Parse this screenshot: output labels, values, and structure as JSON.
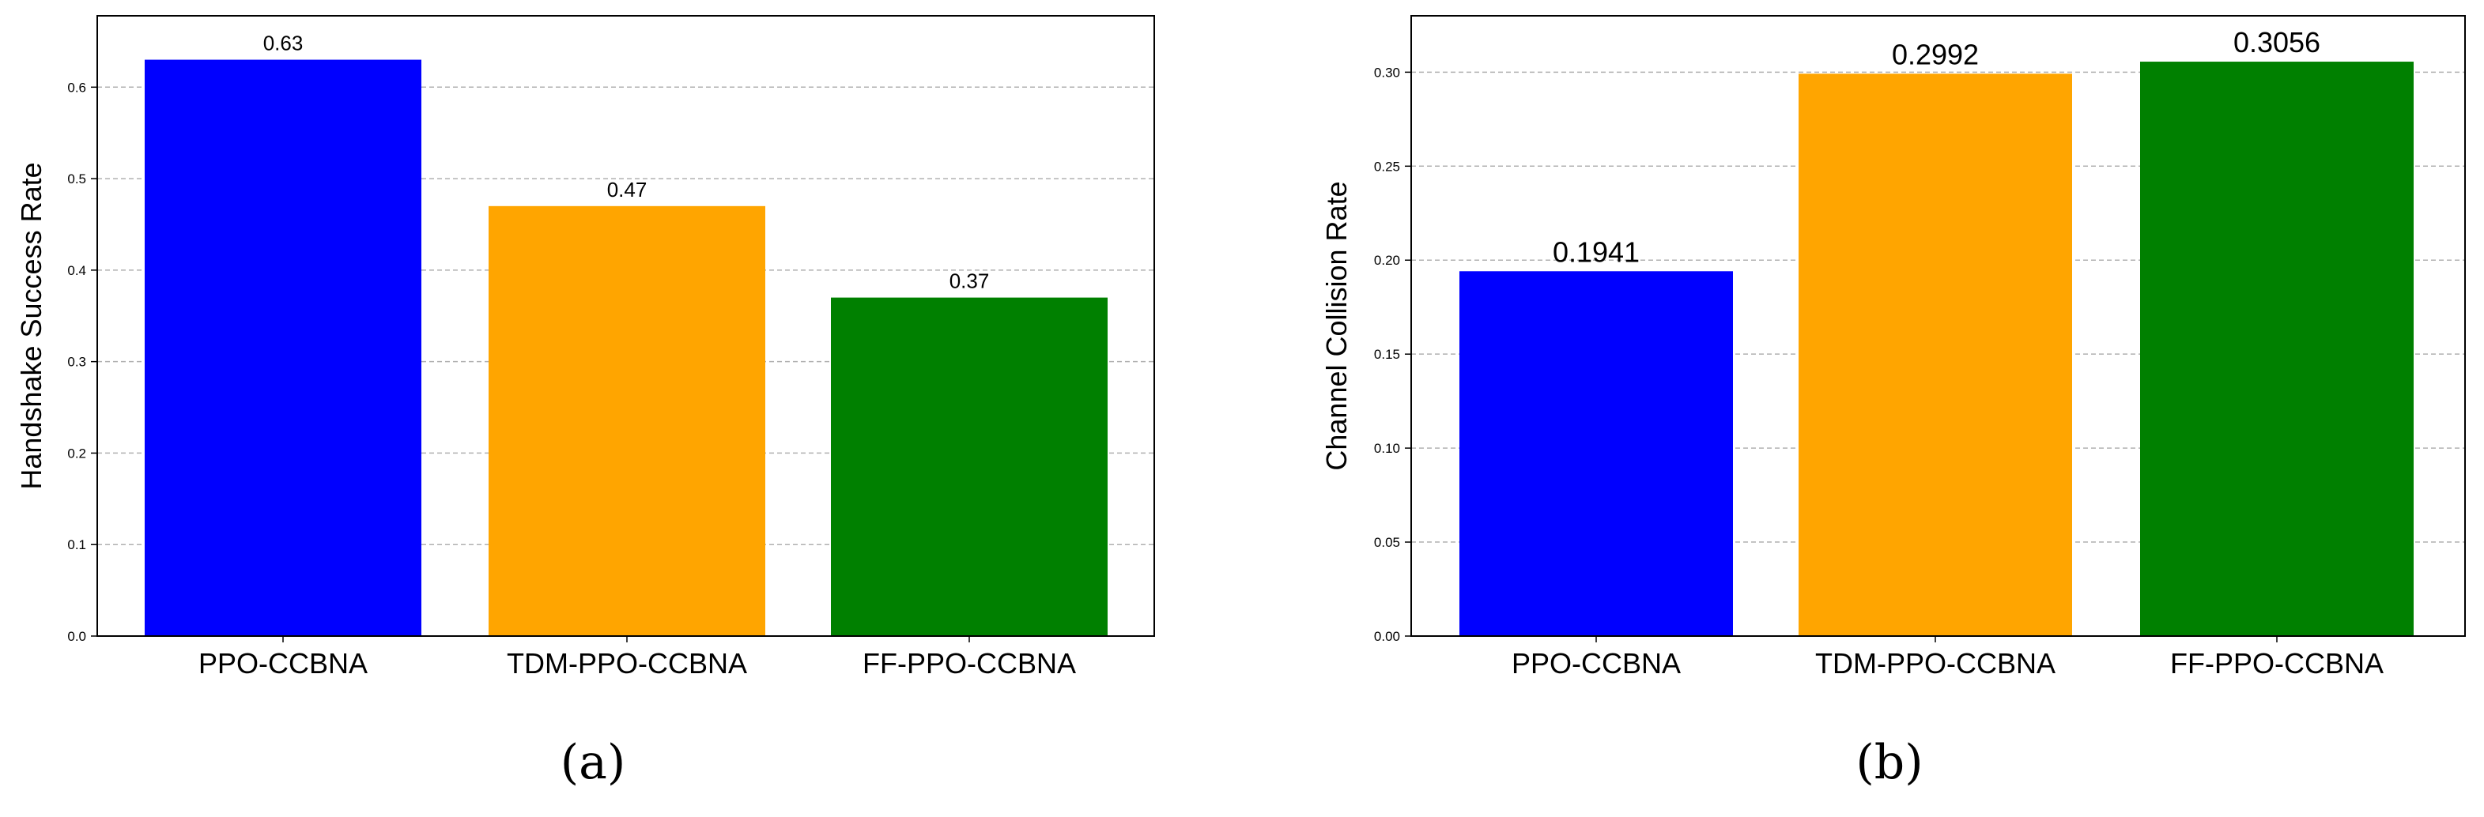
{
  "chart_data": [
    {
      "type": "bar",
      "panel_label": "(a)",
      "categories": [
        "PPO-CCBNA",
        "TDM-PPO-CCBNA",
        "FF-PPO-CCBNA"
      ],
      "values": [
        0.63,
        0.47,
        0.37
      ],
      "data_labels": [
        "0.63",
        "0.47",
        "0.37"
      ],
      "colors": [
        "#0000ff",
        "#ffa500",
        "#008000"
      ],
      "title": "",
      "xlabel": "",
      "ylabel": "Handshake Success Rate",
      "ylim": [
        0,
        0.678
      ],
      "yticks": [
        0.0,
        0.1,
        0.2,
        0.3,
        0.4,
        0.5,
        0.6
      ],
      "ytick_labels": [
        "0.0",
        "0.1",
        "0.2",
        "0.3",
        "0.4",
        "0.5",
        "0.6"
      ],
      "grid": "horizontal dashed"
    },
    {
      "type": "bar",
      "panel_label": "(b)",
      "categories": [
        "PPO-CCBNA",
        "TDM-PPO-CCBNA",
        "FF-PPO-CCBNA"
      ],
      "values": [
        0.1941,
        0.2992,
        0.3056
      ],
      "data_labels": [
        "0.1941",
        "0.2992",
        "0.3056"
      ],
      "colors": [
        "#0000ff",
        "#ffa500",
        "#008000"
      ],
      "title": "",
      "xlabel": "",
      "ylabel": "Channel Collision Rate",
      "ylim": [
        0,
        0.33
      ],
      "yticks": [
        0.0,
        0.05,
        0.1,
        0.15,
        0.2,
        0.25,
        0.3
      ],
      "ytick_labels": [
        "0.00",
        "0.05",
        "0.10",
        "0.15",
        "0.20",
        "0.25",
        "0.30"
      ],
      "grid": "horizontal dashed"
    }
  ]
}
